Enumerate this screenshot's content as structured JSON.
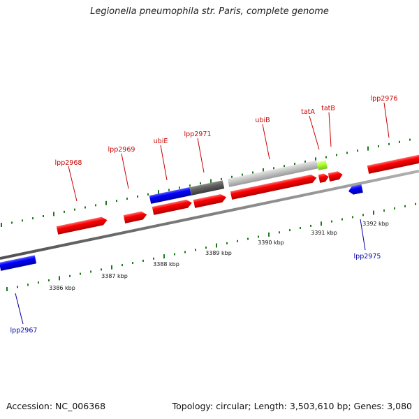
{
  "title": "Legionella pneumophila str. Paris, complete genome",
  "footer": {
    "accession": "Accession: NC_006368",
    "summary": "Topology: circular; Length: 3,503,610 bp; Genes: 3,080"
  },
  "colors": {
    "forward_gene": "#ff0000",
    "reverse_gene": "#0000ff",
    "forward_label": "#cc0000",
    "reverse_label": "#0000aa",
    "tick": "#1a7a1a",
    "backbone": "#808080",
    "orf_gray": "#c8c8c8",
    "orf_dark": "#606060",
    "orf_green": "#adff2f"
  },
  "scale_labels": [
    "3386 kbp",
    "3387 kbp",
    "3388 kbp",
    "3389 kbp",
    "3390 kbp",
    "3391 kbp",
    "3392 kbp"
  ],
  "forward_labels": [
    "lpp2968",
    "lpp2969",
    "ubiE",
    "lpp2971",
    "ubiB",
    "tatA",
    "tatB",
    "lpp2976"
  ],
  "reverse_labels": [
    "lpp2967",
    "lpp2975"
  ]
}
